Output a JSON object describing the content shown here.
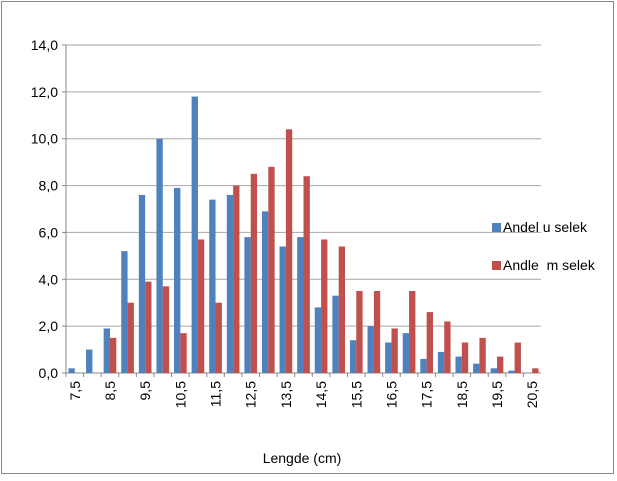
{
  "chart_data": {
    "type": "bar",
    "x_label": "Lengde (cm)",
    "categories": [
      "7,5",
      null,
      "8,5",
      null,
      "9,5",
      null,
      "10,5",
      null,
      "11,5",
      null,
      "12,5",
      null,
      "13,5",
      null,
      "14,5",
      null,
      "15,5",
      null,
      "16,5",
      null,
      "17,5",
      null,
      "18,5",
      null,
      "19,5",
      null,
      "20,5"
    ],
    "series": [
      {
        "name": "Andel u selek",
        "color": "#4f81bd",
        "values": [
          0.2,
          1.0,
          1.9,
          5.2,
          7.6,
          10.0,
          7.9,
          11.8,
          7.4,
          7.6,
          5.8,
          6.9,
          5.4,
          5.8,
          2.8,
          3.3,
          1.4,
          2.0,
          1.3,
          1.7,
          0.6,
          0.9,
          0.7,
          0.4,
          0.2,
          0.1,
          0
        ]
      },
      {
        "name": "Andle  m selek",
        "color": "#c0504d",
        "values": [
          0,
          0,
          1.5,
          3.0,
          3.9,
          3.7,
          1.7,
          5.7,
          3.0,
          8.0,
          8.5,
          8.8,
          10.4,
          8.4,
          5.7,
          5.4,
          3.5,
          3.5,
          1.9,
          3.5,
          2.6,
          2.2,
          1.3,
          1.5,
          0.7,
          1.3,
          0.2
        ]
      }
    ],
    "ylim": [
      0,
      14
    ],
    "yticks": [
      {
        "value": 0,
        "label": "0,0"
      },
      {
        "value": 2,
        "label": "2,0"
      },
      {
        "value": 4,
        "label": "4,0"
      },
      {
        "value": 6,
        "label": "6,0"
      },
      {
        "value": 8,
        "label": "8,0"
      },
      {
        "value": 10,
        "label": "10,0"
      },
      {
        "value": 12,
        "label": "12,0"
      },
      {
        "value": 14,
        "label": "14,0"
      }
    ],
    "grid": true,
    "legend": "right"
  }
}
